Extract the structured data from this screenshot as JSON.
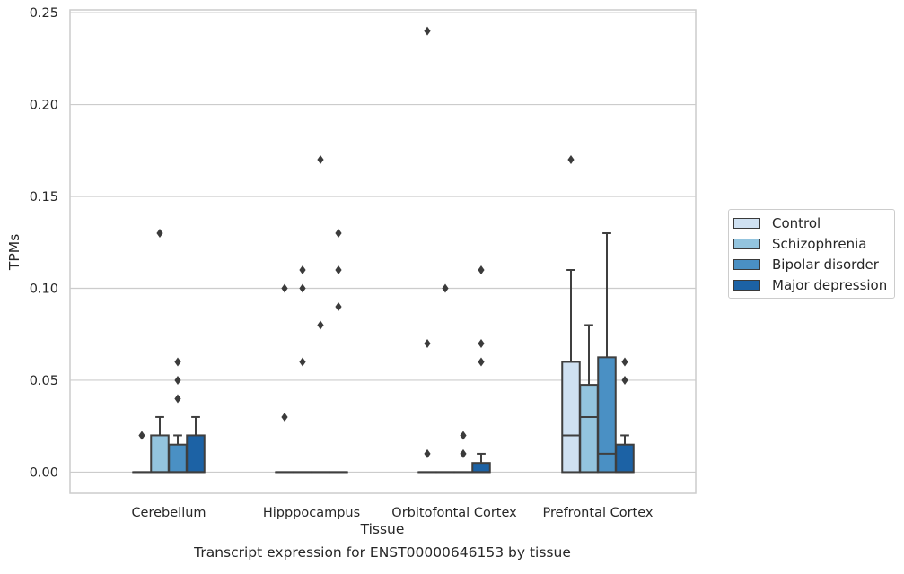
{
  "chart_data": {
    "type": "box",
    "title": "Transcript expression for ENST00000646153 by tissue",
    "xlabel": "Tissue",
    "ylabel": "TPMs",
    "ylim": [
      -0.0115,
      0.2515
    ],
    "yticks": [
      "0.00",
      "0.05",
      "0.10",
      "0.15",
      "0.20",
      "0.25"
    ],
    "ytick_values": [
      0,
      0.05,
      0.1,
      0.15,
      0.2,
      0.25
    ],
    "grid": true,
    "legend_position": "right",
    "categories": [
      "Cerebellum",
      "Hipppocampus",
      "Orbitofontal Cortex",
      "Prefrontal Cortex"
    ],
    "series": [
      {
        "name": "Control",
        "color": "#cfe1f2",
        "boxes": [
          {
            "q1": 0,
            "median": 0,
            "q3": 0,
            "whisker_low": 0,
            "whisker_high": 0,
            "outliers": [
              0.02
            ]
          },
          {
            "q1": 0,
            "median": 0,
            "q3": 0,
            "whisker_low": 0,
            "whisker_high": 0,
            "outliers": [
              0.03,
              0.1
            ]
          },
          {
            "q1": 0,
            "median": 0,
            "q3": 0,
            "whisker_low": 0,
            "whisker_high": 0,
            "outliers": [
              0.01,
              0.07,
              0.24
            ]
          },
          {
            "q1": 0,
            "median": 0.02,
            "q3": 0.06,
            "whisker_low": 0,
            "whisker_high": 0.11,
            "outliers": [
              0.17
            ]
          }
        ]
      },
      {
        "name": "Schizophrenia",
        "color": "#93c4de",
        "boxes": [
          {
            "q1": 0,
            "median": 0,
            "q3": 0.02,
            "whisker_low": 0,
            "whisker_high": 0.03,
            "outliers": [
              0.13
            ]
          },
          {
            "q1": 0,
            "median": 0,
            "q3": 0,
            "whisker_low": 0,
            "whisker_high": 0,
            "outliers": [
              0.06,
              0.1,
              0.11
            ]
          },
          {
            "q1": 0,
            "median": 0,
            "q3": 0,
            "whisker_low": 0,
            "whisker_high": 0,
            "outliers": [
              0.1
            ]
          },
          {
            "q1": 0,
            "median": 0.03,
            "q3": 0.0475,
            "whisker_low": 0,
            "whisker_high": 0.08,
            "outliers": []
          }
        ]
      },
      {
        "name": "Bipolar disorder",
        "color": "#4a90c4",
        "boxes": [
          {
            "q1": 0,
            "median": 0,
            "q3": 0.015,
            "whisker_low": 0,
            "whisker_high": 0.02,
            "outliers": [
              0.04,
              0.05,
              0.06
            ]
          },
          {
            "q1": 0,
            "median": 0,
            "q3": 0,
            "whisker_low": 0,
            "whisker_high": 0,
            "outliers": [
              0.08,
              0.17
            ]
          },
          {
            "q1": 0,
            "median": 0,
            "q3": 0,
            "whisker_low": 0,
            "whisker_high": 0,
            "outliers": [
              0.01,
              0.02
            ]
          },
          {
            "q1": 0,
            "median": 0.01,
            "q3": 0.0625,
            "whisker_low": 0,
            "whisker_high": 0.13,
            "outliers": []
          }
        ]
      },
      {
        "name": "Major depression",
        "color": "#1c62a5",
        "boxes": [
          {
            "q1": 0,
            "median": 0,
            "q3": 0.02,
            "whisker_low": 0,
            "whisker_high": 0.03,
            "outliers": []
          },
          {
            "q1": 0,
            "median": 0,
            "q3": 0,
            "whisker_low": 0,
            "whisker_high": 0,
            "outliers": [
              0.09,
              0.11,
              0.13
            ]
          },
          {
            "q1": 0,
            "median": 0,
            "q3": 0.005,
            "whisker_low": 0,
            "whisker_high": 0.01,
            "outliers": [
              0.06,
              0.07,
              0.11
            ]
          },
          {
            "q1": 0,
            "median": 0,
            "q3": 0.015,
            "whisker_low": 0,
            "whisker_high": 0.02,
            "outliers": [
              0.05,
              0.06
            ]
          }
        ]
      }
    ]
  }
}
